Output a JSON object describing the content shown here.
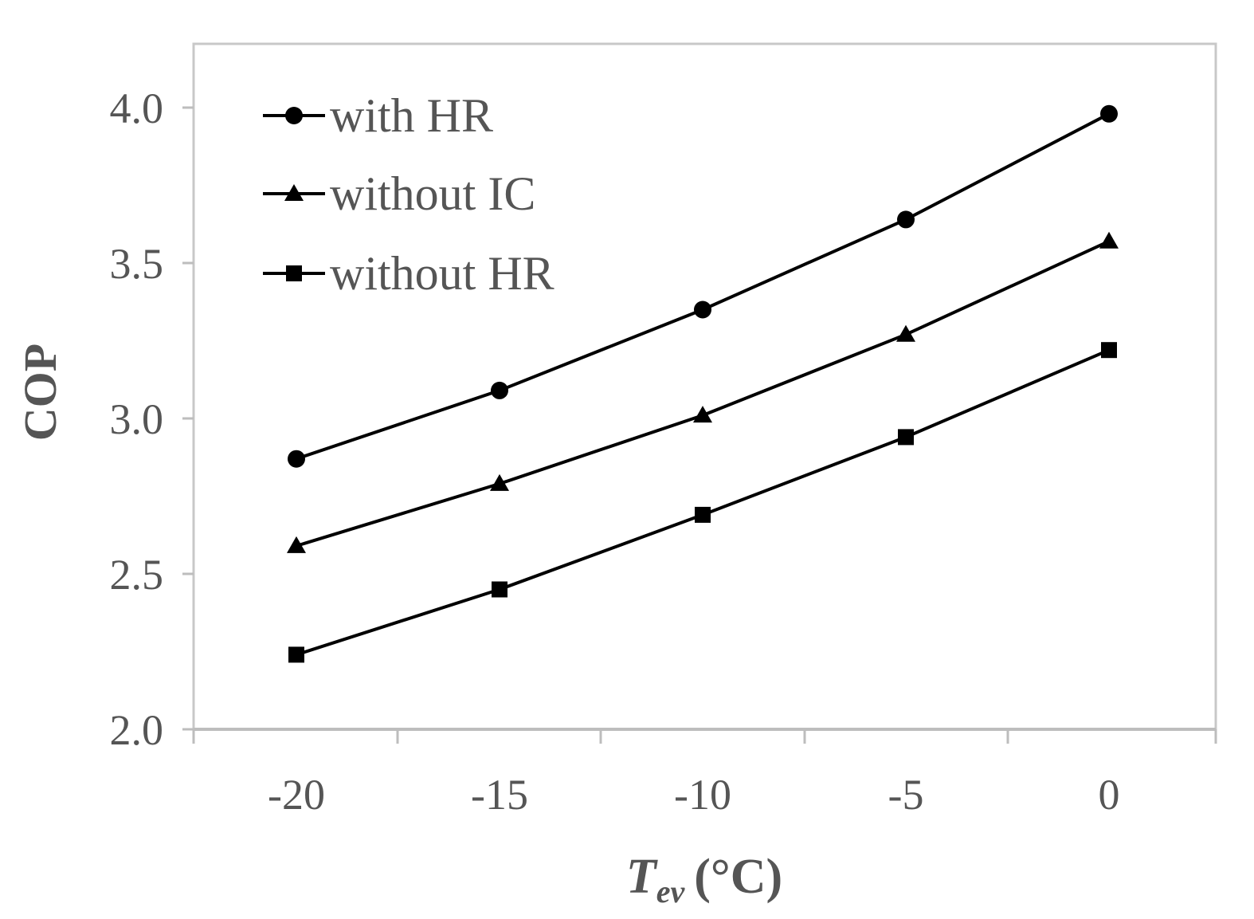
{
  "chart_data": {
    "type": "line",
    "xlabel_main": "T",
    "xlabel_sub": "ev",
    "xlabel_unit": "(°C)",
    "ylabel": "COP",
    "x": [
      -20,
      -15,
      -10,
      -5,
      0
    ],
    "x_tick_labels": [
      "-20",
      "-15",
      "-10",
      "-5",
      "0"
    ],
    "y_tick_labels": [
      "2.0",
      "2.5",
      "3.0",
      "3.5",
      "4.0"
    ],
    "ylim": [
      2.0,
      4.0
    ],
    "grid": false,
    "legend_position": "top-left",
    "line_color": "#000000",
    "frame_color": "#c8c8c8",
    "series": [
      {
        "name": "with HR",
        "marker": "circle",
        "values": [
          2.87,
          3.09,
          3.35,
          3.64,
          3.98
        ]
      },
      {
        "name": "without IC",
        "marker": "triangle",
        "values": [
          2.59,
          2.79,
          3.01,
          3.27,
          3.57
        ]
      },
      {
        "name": "without HR",
        "marker": "square",
        "values": [
          2.24,
          2.45,
          2.69,
          2.94,
          3.22
        ]
      }
    ]
  }
}
